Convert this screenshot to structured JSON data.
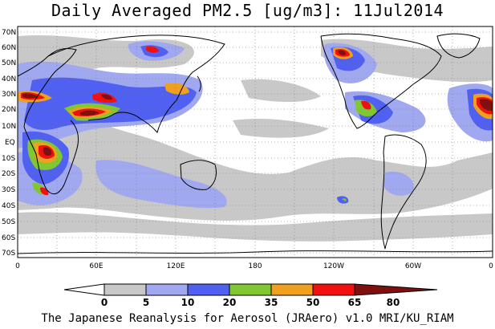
{
  "title": "Daily Averaged PM2.5 [ug/m3]: 11Jul2014",
  "footer": "The Japanese Reanalysis for Aerosol (JRAero) v1.0 MRI/KU_RIAM",
  "map": {
    "projection": "cylindrical equidistant",
    "lon_range": [
      0,
      360
    ],
    "lat_range": [
      -75,
      75
    ],
    "grid": true,
    "lat_labels": [
      "70N",
      "60N",
      "50N",
      "40N",
      "30N",
      "20N",
      "10N",
      "EQ",
      "10S",
      "20S",
      "30S",
      "40S",
      "50S",
      "60S",
      "70S"
    ],
    "lon_labels": [
      "0",
      "60E",
      "120E",
      "180",
      "120W",
      "60W",
      "0"
    ]
  },
  "colorbar": {
    "levels": [
      "0",
      "5",
      "10",
      "20",
      "35",
      "50",
      "65",
      "80"
    ],
    "colors": [
      "#ffffff",
      "#c8c8c8",
      "#a0a8f0",
      "#5060f0",
      "#80c830",
      "#f0a020",
      "#f01010",
      "#801010"
    ]
  }
}
